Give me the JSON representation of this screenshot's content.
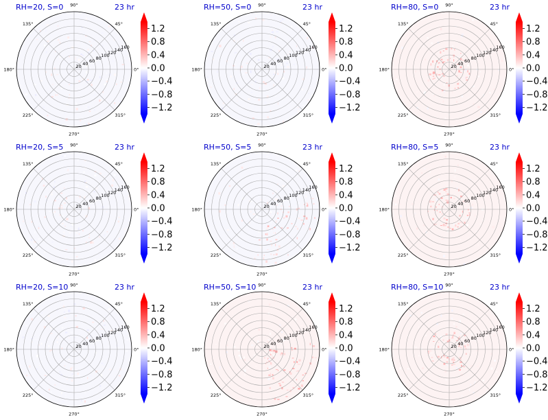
{
  "chart_data": {
    "type": "polar-heatmap-grid",
    "panel_time": "23 hr",
    "angular_labels": [
      "0°",
      "45°",
      "90°",
      "135°",
      "180°",
      "225°",
      "270°",
      "315°"
    ],
    "radial_ticks": [
      20,
      40,
      60,
      80,
      100,
      120,
      140,
      160
    ],
    "radial_max": 160,
    "colorbar": {
      "colormap": "bwr",
      "ticks": [
        1.2,
        0.8,
        0.4,
        0.0,
        -0.4,
        -0.8,
        -1.2
      ],
      "tick_labels": [
        "1.2",
        "0.8",
        "0.4",
        "0.0",
        "−0.4",
        "−0.8",
        "−1.2"
      ],
      "range": [
        -1.4,
        1.4
      ],
      "extend": "both"
    },
    "panels": [
      {
        "title": "RH=20, S=0",
        "rh": 20,
        "s": 0,
        "pattern": "weak-scattered"
      },
      {
        "title": "RH=50, S=0",
        "rh": 50,
        "s": 0,
        "pattern": "weak-scattered"
      },
      {
        "title": "RH=80, S=0",
        "rh": 80,
        "s": 0,
        "pattern": "center-ring"
      },
      {
        "title": "RH=20, S=5",
        "rh": 20,
        "s": 5,
        "pattern": "weak-scattered"
      },
      {
        "title": "RH=50, S=5",
        "rh": 50,
        "s": 5,
        "pattern": "downshear-arc"
      },
      {
        "title": "RH=80, S=5",
        "rh": 80,
        "s": 5,
        "pattern": "center-ring"
      },
      {
        "title": "RH=20, S=10",
        "rh": 20,
        "s": 10,
        "pattern": "weak-scattered"
      },
      {
        "title": "RH=50, S=10",
        "rh": 50,
        "s": 10,
        "pattern": "southeast-quadrant"
      },
      {
        "title": "RH=80, S=10",
        "rh": 80,
        "s": 10,
        "pattern": "center-ring"
      }
    ]
  }
}
